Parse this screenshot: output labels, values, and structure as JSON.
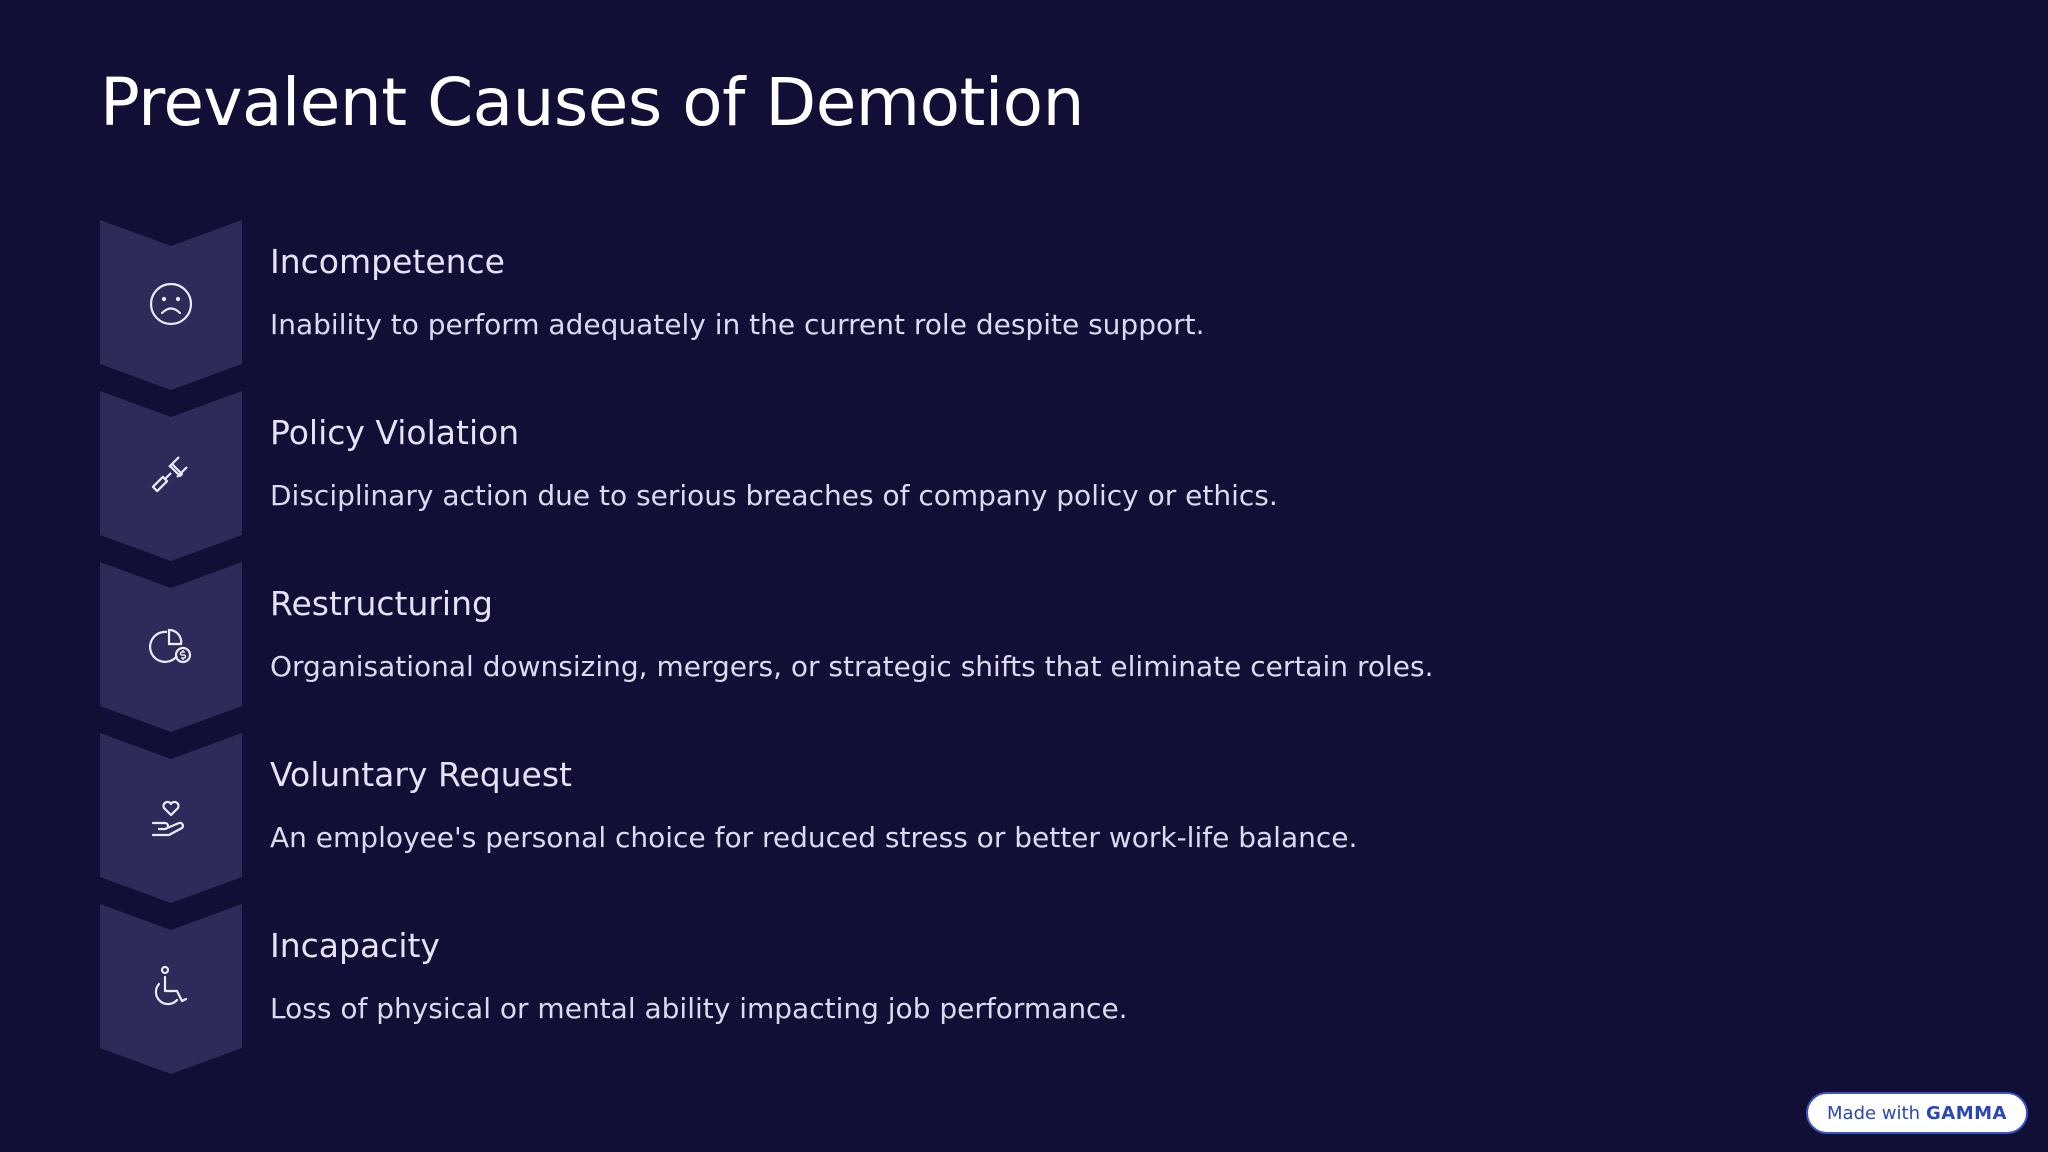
{
  "title": "Prevalent Causes of Demotion",
  "colors": {
    "background": "#110f35",
    "chevron": "#2e2b5b",
    "text": "#e4e2f3"
  },
  "items": [
    {
      "heading": "Incompetence",
      "description": "Inability to perform adequately in the current role despite support.",
      "icon": "sad-face-icon"
    },
    {
      "heading": "Policy Violation",
      "description": "Disciplinary action due to serious breaches of company policy or ethics.",
      "icon": "gavel-icon"
    },
    {
      "heading": "Restructuring",
      "description": "Organisational downsizing, mergers, or strategic shifts that eliminate certain roles.",
      "icon": "pie-chart-dollar-icon"
    },
    {
      "heading": "Voluntary Request",
      "description": "An employee's personal choice for reduced stress or better work-life balance.",
      "icon": "hand-heart-icon"
    },
    {
      "heading": "Incapacity",
      "description": "Loss of physical or mental ability impacting job performance.",
      "icon": "wheelchair-icon"
    }
  ],
  "badge": {
    "prefix": "Made with",
    "brand": "GAMMA"
  }
}
